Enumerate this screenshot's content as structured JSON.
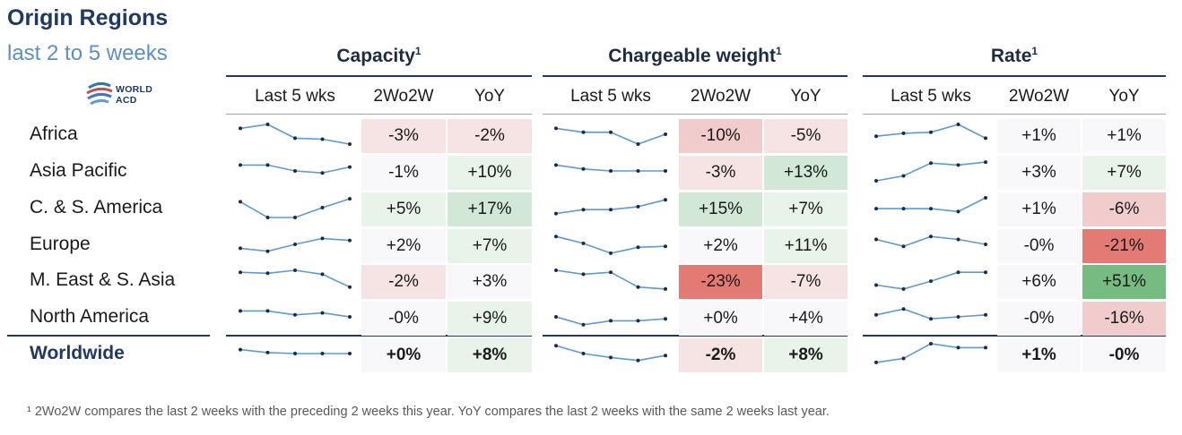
{
  "title": "Origin Regions",
  "subtitle": "last 2 to 5 weeks",
  "logo_text": "WORLD ACD",
  "colors": {
    "neg_light": "#f6e3e3",
    "neg_mid": "#f0cccc",
    "neg_strong": "#e37a74",
    "pos_light": "#e8f3ea",
    "pos_mid": "#d0e8d5",
    "pos_strong": "#76bb7f",
    "neutral": "#f8f8fb",
    "sparkline": "#5b9bd5",
    "marker": "#1f2a44"
  },
  "groups": [
    {
      "title": "Capacity",
      "sup": "1",
      "col_last5": "Last 5 wks",
      "col_2w": "2Wo2W",
      "col_yoy": "YoY"
    },
    {
      "title": "Chargeable weight",
      "sup": "1",
      "col_last5": "Last 5 wks",
      "col_2w": "2Wo2W",
      "col_yoy": "YoY"
    },
    {
      "title": "Rate",
      "sup": "1",
      "col_last5": "Last 5 wks",
      "col_2w": "2Wo2W",
      "col_yoy": "YoY"
    }
  ],
  "regions": [
    "Africa",
    "Asia Pacific",
    "C. & S. America",
    "Europe",
    "M. East & S. Asia",
    "North America",
    "Worldwide"
  ],
  "chart_data": {
    "type": "table",
    "title": "Origin Regions - last 2 to 5 weeks",
    "metrics": [
      "Capacity",
      "Chargeable weight",
      "Rate"
    ],
    "columns": [
      "Last 5 wks",
      "2Wo2W",
      "YoY"
    ],
    "rows": [
      {
        "region": "Africa",
        "capacity": {
          "spark": [
            0.2,
            0.0,
            0.7,
            0.75,
            1.0
          ],
          "w2": "-3%",
          "yoy": "-2%",
          "w2_tone": "neg_light",
          "yoy_tone": "neg_light"
        },
        "weight": {
          "spark": [
            0.2,
            0.4,
            0.4,
            1.0,
            0.5
          ],
          "w2": "-10%",
          "yoy": "-5%",
          "w2_tone": "neg_mid",
          "yoy_tone": "neg_light"
        },
        "rate": {
          "spark": [
            0.6,
            0.45,
            0.4,
            0.0,
            0.7
          ],
          "w2": "+1%",
          "yoy": "+1%",
          "w2_tone": "neutral",
          "yoy_tone": "neutral"
        }
      },
      {
        "region": "Asia Pacific",
        "capacity": {
          "spark": [
            0.2,
            0.2,
            0.5,
            0.6,
            0.3
          ],
          "w2": "-1%",
          "yoy": "+10%",
          "w2_tone": "neutral",
          "yoy_tone": "pos_light"
        },
        "weight": {
          "spark": [
            0.2,
            0.4,
            0.5,
            0.5,
            0.5
          ],
          "w2": "-3%",
          "yoy": "+13%",
          "w2_tone": "neg_light",
          "yoy_tone": "pos_mid"
        },
        "rate": {
          "spark": [
            1.0,
            0.75,
            0.1,
            0.2,
            0.05
          ],
          "w2": "+3%",
          "yoy": "+7%",
          "w2_tone": "neutral",
          "yoy_tone": "pos_light"
        }
      },
      {
        "region": "C. & S. America",
        "capacity": {
          "spark": [
            0.2,
            1.0,
            1.0,
            0.5,
            0.05
          ],
          "w2": "+5%",
          "yoy": "+17%",
          "w2_tone": "pos_light",
          "yoy_tone": "pos_mid"
        },
        "weight": {
          "spark": [
            0.8,
            0.6,
            0.6,
            0.45,
            0.1
          ],
          "w2": "+15%",
          "yoy": "+7%",
          "w2_tone": "pos_mid",
          "yoy_tone": "pos_light"
        },
        "rate": {
          "spark": [
            0.55,
            0.55,
            0.55,
            0.7,
            0.0
          ],
          "w2": "+1%",
          "yoy": "-6%",
          "w2_tone": "neutral",
          "yoy_tone": "neg_mid"
        }
      },
      {
        "region": "Europe",
        "capacity": {
          "spark": [
            0.7,
            0.85,
            0.5,
            0.2,
            0.3
          ],
          "w2": "+2%",
          "yoy": "+7%",
          "w2_tone": "neutral",
          "yoy_tone": "pos_light"
        },
        "weight": {
          "spark": [
            0.1,
            0.45,
            0.95,
            0.65,
            0.6
          ],
          "w2": "+2%",
          "yoy": "+11%",
          "w2_tone": "neutral",
          "yoy_tone": "pos_light"
        },
        "rate": {
          "spark": [
            0.25,
            0.6,
            0.1,
            0.25,
            0.5
          ],
          "w2": "-0%",
          "yoy": "-21%",
          "w2_tone": "neutral",
          "yoy_tone": "neg_strong"
        }
      },
      {
        "region": "M. East & S. Asia",
        "capacity": {
          "spark": [
            0.1,
            0.15,
            0.0,
            0.2,
            0.85
          ],
          "w2": "-2%",
          "yoy": "+3%",
          "w2_tone": "neg_light",
          "yoy_tone": "neutral"
        },
        "weight": {
          "spark": [
            0.0,
            0.2,
            0.1,
            0.85,
            0.95
          ],
          "w2": "-23%",
          "yoy": "-7%",
          "w2_tone": "neg_strong",
          "yoy_tone": "neg_light"
        },
        "rate": {
          "spark": [
            0.75,
            0.95,
            0.55,
            0.1,
            0.1
          ],
          "w2": "+6%",
          "yoy": "+51%",
          "w2_tone": "neutral",
          "yoy_tone": "pos_strong"
        }
      },
      {
        "region": "North America",
        "capacity": {
          "spark": [
            0.2,
            0.2,
            0.4,
            0.3,
            0.5
          ],
          "w2": "-0%",
          "yoy": "+9%",
          "w2_tone": "neutral",
          "yoy_tone": "pos_light"
        },
        "weight": {
          "spark": [
            0.5,
            0.9,
            0.7,
            0.7,
            0.6
          ],
          "w2": "+0%",
          "yoy": "+4%",
          "w2_tone": "neutral",
          "yoy_tone": "neutral"
        },
        "rate": {
          "spark": [
            0.4,
            0.1,
            0.6,
            0.5,
            0.4
          ],
          "w2": "-0%",
          "yoy": "-16%",
          "w2_tone": "neutral",
          "yoy_tone": "neg_mid"
        }
      },
      {
        "region": "Worldwide",
        "capacity": {
          "spark": [
            0.3,
            0.45,
            0.5,
            0.5,
            0.5
          ],
          "w2": "+0%",
          "yoy": "+8%",
          "w2_tone": "neutral",
          "yoy_tone": "pos_light"
        },
        "weight": {
          "spark": [
            0.1,
            0.5,
            0.7,
            0.85,
            0.6
          ],
          "w2": "-2%",
          "yoy": "+8%",
          "w2_tone": "neg_light",
          "yoy_tone": "pos_light"
        },
        "rate": {
          "spark": [
            0.95,
            0.75,
            0.0,
            0.2,
            0.2
          ],
          "w2": "+1%",
          "yoy": "-0%",
          "w2_tone": "neutral",
          "yoy_tone": "neutral"
        }
      }
    ]
  },
  "footnote": "¹ 2Wo2W compares the last 2 weeks with the preceding 2 weeks this year. YoY compares the last 2 weeks with the same 2 weeks last year."
}
